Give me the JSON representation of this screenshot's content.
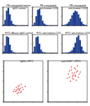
{
  "chart_data": [
    {
      "type": "histogram",
      "title": "PE-conjugated mouse IgG1 control",
      "color": "#1f3f8f",
      "bins": [
        0,
        0.25,
        0.5,
        0.75,
        1,
        1.25,
        1.5,
        1.75,
        2,
        2.25,
        2.5,
        2.75,
        3,
        3.25,
        3.5,
        3.75,
        4
      ],
      "counts": [
        5,
        30,
        80,
        95,
        60,
        25,
        8,
        3,
        1,
        0,
        0,
        0,
        0,
        0,
        0,
        0
      ],
      "xlim": [
        0,
        4
      ],
      "xticks": [
        0,
        1,
        2,
        3,
        4
      ],
      "ylim": [
        0,
        100
      ],
      "yticks": [
        0,
        50,
        100
      ],
      "grid": false,
      "tick_labels": false
    },
    {
      "type": "histogram",
      "title": "PE-conjugated anti-human CD3",
      "color": "#1f3f8f",
      "bins": [
        0,
        0.25,
        0.5,
        0.75,
        1,
        1.25,
        1.5,
        1.75,
        2,
        2.25,
        2.5,
        2.75,
        3,
        3.25,
        3.5,
        3.75,
        4
      ],
      "counts": [
        2,
        15,
        50,
        85,
        90,
        55,
        25,
        10,
        4,
        1,
        0,
        0,
        0,
        0,
        0,
        0
      ],
      "xlim": [
        0,
        4
      ],
      "xticks": [
        0,
        1,
        2,
        3,
        4
      ],
      "ylim": [
        0,
        100
      ],
      "yticks": [
        0,
        50,
        100
      ],
      "grid": false,
      "tick_labels": false
    },
    {
      "type": "histogram",
      "title": "PE-conjugated anti-human CD47",
      "color": "#1f3f8f",
      "bins": [
        0,
        0.25,
        0.5,
        0.75,
        1,
        1.25,
        1.5,
        1.75,
        2,
        2.25,
        2.5,
        2.75,
        3,
        3.25,
        3.5,
        3.75,
        4
      ],
      "counts": [
        0,
        2,
        5,
        10,
        20,
        35,
        55,
        70,
        80,
        75,
        60,
        40,
        20,
        8,
        3,
        1
      ],
      "xlim": [
        0,
        4
      ],
      "xticks": [
        0,
        1,
        2,
        3,
        4
      ],
      "ylim": [
        0,
        100
      ],
      "yticks": [
        0,
        50,
        100
      ],
      "grid": false,
      "tick_labels": false
    },
    {
      "type": "histogram",
      "title": "FITC-Mouse IgG1 control",
      "color": "#1f3f8f",
      "bins": [
        0,
        0.25,
        0.5,
        0.75,
        1,
        1.25,
        1.5,
        1.75,
        2,
        2.25,
        2.5,
        2.75,
        3,
        3.25,
        3.5,
        3.75,
        4
      ],
      "counts": [
        8,
        40,
        90,
        85,
        45,
        15,
        5,
        2,
        0,
        0,
        0,
        0,
        0,
        0,
        0,
        0
      ],
      "xlim": [
        0,
        4
      ],
      "xticks": [
        0,
        1,
        2,
        3,
        4
      ],
      "ylim": [
        0,
        100
      ],
      "yticks": [
        0,
        50,
        100
      ],
      "grid": false,
      "tick_labels": false
    },
    {
      "type": "histogram",
      "title": "FITC anti-human CD3",
      "color": "#1f3f8f",
      "bins": [
        0,
        0.25,
        0.5,
        0.75,
        1,
        1.25,
        1.5,
        1.75,
        2,
        2.25,
        2.5,
        2.75,
        3,
        3.25,
        3.5,
        3.75,
        4
      ],
      "counts": [
        6,
        35,
        85,
        90,
        50,
        18,
        6,
        2,
        1,
        0,
        0,
        0,
        0,
        0,
        0,
        0
      ],
      "xlim": [
        0,
        4
      ],
      "xticks": [
        0,
        1,
        2,
        3,
        4
      ],
      "ylim": [
        0,
        100
      ],
      "yticks": [
        0,
        50,
        100
      ],
      "grid": false,
      "tick_labels": false
    },
    {
      "type": "histogram",
      "title": "FITC anti-human CD47",
      "color": "#1f3f8f",
      "bins": [
        0,
        0.25,
        0.5,
        0.75,
        1,
        1.25,
        1.5,
        1.75,
        2,
        2.25,
        2.5,
        2.75,
        3,
        3.25,
        3.5,
        3.75,
        4
      ],
      "counts": [
        0,
        0,
        1,
        2,
        4,
        8,
        15,
        30,
        55,
        85,
        95,
        70,
        35,
        12,
        3,
        1
      ],
      "xlim": [
        0,
        4
      ],
      "xticks": [
        0,
        1,
        2,
        3,
        4
      ],
      "ylim": [
        0,
        100
      ],
      "yticks": [
        0,
        50,
        100
      ],
      "grid": false,
      "tick_labels": false
    },
    {
      "type": "scatter",
      "title": "IgG1+ FITC",
      "color": "#e02020",
      "x": [
        1.2,
        1.4,
        1.5,
        1.6,
        1.3,
        1.7,
        1.8,
        1.5,
        1.1,
        1.9,
        1.4,
        1.6,
        2.0,
        1.3,
        1.7,
        1.5,
        2.2,
        1.0,
        1.8,
        1.6
      ],
      "y": [
        1.0,
        1.2,
        0.9,
        1.1,
        1.4,
        1.3,
        1.0,
        1.5,
        1.2,
        1.4,
        0.8,
        1.6,
        1.2,
        1.1,
        0.9,
        1.3,
        1.5,
        1.0,
        1.7,
        1.2
      ],
      "xlim": [
        0,
        4
      ],
      "xticks": [
        0,
        1,
        2,
        3,
        4
      ],
      "ylim": [
        0,
        4
      ],
      "yticks": [
        0,
        1,
        2,
        3,
        4
      ],
      "grid": false,
      "tick_labels": false
    },
    {
      "type": "scatter",
      "title": "anti-CD47 + FITC",
      "color": "#e02020",
      "x": [
        2.2,
        2.5,
        2.8,
        3.0,
        2.4,
        2.6,
        2.9,
        3.2,
        2.1,
        2.7,
        2.3,
        3.1,
        2.5,
        2.8,
        2.0,
        3.3,
        2.6,
        2.4,
        2.9,
        2.7,
        3.0,
        2.2,
        2.5,
        2.8
      ],
      "y": [
        2.4,
        2.8,
        2.6,
        3.0,
        3.1,
        2.2,
        2.9,
        2.7,
        2.7,
        3.3,
        2.0,
        2.4,
        2.5,
        3.2,
        2.3,
        2.9,
        2.6,
        3.4,
        2.1,
        2.8,
        3.5,
        3.0,
        2.3,
        2.5
      ],
      "xlim": [
        0,
        4
      ],
      "xticks": [
        0,
        1,
        2,
        3,
        4
      ],
      "ylim": [
        0,
        4
      ],
      "yticks": [
        0,
        1,
        2,
        3,
        4
      ],
      "grid": false,
      "tick_labels": false
    }
  ]
}
